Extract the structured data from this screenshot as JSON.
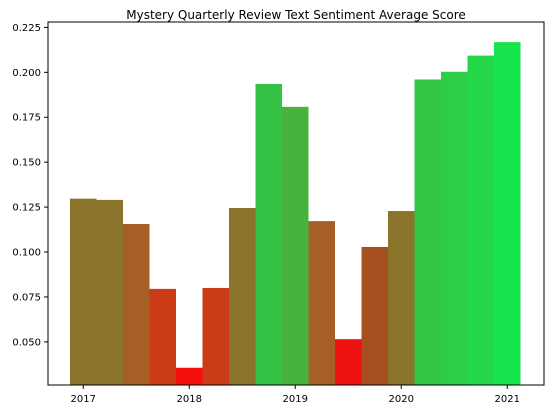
{
  "chart_data": {
    "type": "bar",
    "title": "Mystery Quarterly Review Text Sentiment Average Score",
    "xlabel": "",
    "ylabel": "",
    "x_tick_labels": [
      "2017",
      "2018",
      "2019",
      "2020",
      "2021"
    ],
    "y_tick_labels": [
      "0.050",
      "0.075",
      "0.100",
      "0.125",
      "0.150",
      "0.175",
      "0.200",
      "0.225"
    ],
    "ylim": [
      0.026,
      0.228
    ],
    "grid": false,
    "legend": "none",
    "bars": [
      {
        "period": "2017 Q1",
        "value": 0.1297,
        "color": "#8b742c"
      },
      {
        "period": "2017 Q2",
        "value": 0.129,
        "color": "#8b742c"
      },
      {
        "period": "2017 Q3",
        "value": 0.1156,
        "color": "#a65f24"
      },
      {
        "period": "2017 Q4",
        "value": 0.0795,
        "color": "#cc3b18"
      },
      {
        "period": "2018 Q1",
        "value": 0.0356,
        "color": "#f50f0a"
      },
      {
        "period": "2018 Q2",
        "value": 0.08,
        "color": "#cc3b18"
      },
      {
        "period": "2018 Q3",
        "value": 0.1245,
        "color": "#8b742c"
      },
      {
        "period": "2018 Q4",
        "value": 0.1935,
        "color": "#35c143"
      },
      {
        "period": "2019 Q1",
        "value": 0.1808,
        "color": "#46b43c"
      },
      {
        "period": "2019 Q2",
        "value": 0.1172,
        "color": "#a65f24"
      },
      {
        "period": "2019 Q3",
        "value": 0.0515,
        "color": "#f01111"
      },
      {
        "period": "2019 Q4",
        "value": 0.1028,
        "color": "#a65020"
      },
      {
        "period": "2020 Q1",
        "value": 0.1228,
        "color": "#8b742c"
      },
      {
        "period": "2020 Q2",
        "value": 0.196,
        "color": "#33c544"
      },
      {
        "period": "2020 Q3",
        "value": 0.2003,
        "color": "#2ecd46"
      },
      {
        "period": "2020 Q4",
        "value": 0.2093,
        "color": "#25d84a"
      },
      {
        "period": "2021 Q1",
        "value": 0.2168,
        "color": "#17e34d"
      }
    ],
    "year_tick_positions": [
      0.5,
      4.5,
      8.5,
      12.5,
      16.5
    ],
    "y_ticks": [
      0.05,
      0.075,
      0.1,
      0.125,
      0.15,
      0.175,
      0.2,
      0.225
    ]
  }
}
